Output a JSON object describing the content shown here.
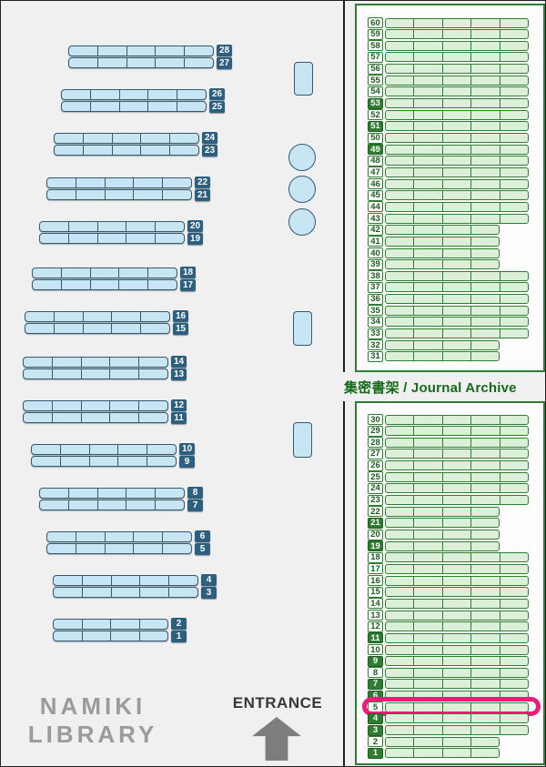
{
  "library_name_line1": "NAMIKI",
  "library_name_line2": "LIBRARY",
  "entrance_label": "ENTRANCE",
  "archive_label": "集密書架 / Journal Archive",
  "highlighted_row": 5,
  "colors": {
    "highlight_pink": "#ec1a78",
    "shelf_blue_fill": "#c8e5f4",
    "shelf_blue_border": "#35596d",
    "shelf_blue_label_bg": "#2d5f80",
    "shelf_green_fill": "#dcefd8",
    "shelf_green_border": "#2f7d32",
    "archive_text_green": "#156a1a",
    "background_gray": "#f0f0f0"
  },
  "left_shelves": {
    "rows": [
      {
        "n": 28,
        "cells": 5
      },
      {
        "n": 27,
        "cells": 5
      },
      {
        "n": 26,
        "cells": 5
      },
      {
        "n": 25,
        "cells": 5
      },
      {
        "n": 24,
        "cells": 5
      },
      {
        "n": 23,
        "cells": 5
      },
      {
        "n": 22,
        "cells": 5
      },
      {
        "n": 21,
        "cells": 5
      },
      {
        "n": 20,
        "cells": 5
      },
      {
        "n": 19,
        "cells": 5
      },
      {
        "n": 18,
        "cells": 5
      },
      {
        "n": 17,
        "cells": 5
      },
      {
        "n": 16,
        "cells": 5
      },
      {
        "n": 15,
        "cells": 5
      },
      {
        "n": 14,
        "cells": 5
      },
      {
        "n": 13,
        "cells": 5
      },
      {
        "n": 12,
        "cells": 5
      },
      {
        "n": 11,
        "cells": 5
      },
      {
        "n": 10,
        "cells": 5
      },
      {
        "n": 9,
        "cells": 5
      },
      {
        "n": 8,
        "cells": 5
      },
      {
        "n": 7,
        "cells": 5
      },
      {
        "n": 6,
        "cells": 5
      },
      {
        "n": 5,
        "cells": 5
      },
      {
        "n": 4,
        "cells": 5
      },
      {
        "n": 3,
        "cells": 5
      },
      {
        "n": 2,
        "cells": 4
      },
      {
        "n": 1,
        "cells": 4
      }
    ]
  },
  "journal_archive_top": {
    "rows": [
      {
        "n": 60,
        "cells": 5,
        "dark": false
      },
      {
        "n": 59,
        "cells": 5,
        "dark": false
      },
      {
        "n": 58,
        "cells": 5,
        "dark": false
      },
      {
        "n": 57,
        "cells": 5,
        "dark": false
      },
      {
        "n": 56,
        "cells": 5,
        "dark": false
      },
      {
        "n": 55,
        "cells": 5,
        "dark": false
      },
      {
        "n": 54,
        "cells": 5,
        "dark": false
      },
      {
        "n": 53,
        "cells": 5,
        "dark": true
      },
      {
        "n": 52,
        "cells": 5,
        "dark": false
      },
      {
        "n": 51,
        "cells": 5,
        "dark": true
      },
      {
        "n": 50,
        "cells": 5,
        "dark": false
      },
      {
        "n": 49,
        "cells": 5,
        "dark": true
      },
      {
        "n": 48,
        "cells": 5,
        "dark": false
      },
      {
        "n": 47,
        "cells": 5,
        "dark": false
      },
      {
        "n": 46,
        "cells": 5,
        "dark": false
      },
      {
        "n": 45,
        "cells": 5,
        "dark": false
      },
      {
        "n": 44,
        "cells": 5,
        "dark": false
      },
      {
        "n": 43,
        "cells": 5,
        "dark": false
      },
      {
        "n": 42,
        "cells": 4,
        "dark": false
      },
      {
        "n": 41,
        "cells": 4,
        "dark": false
      },
      {
        "n": 40,
        "cells": 4,
        "dark": false
      },
      {
        "n": 39,
        "cells": 4,
        "dark": false
      },
      {
        "n": 38,
        "cells": 5,
        "dark": false
      },
      {
        "n": 37,
        "cells": 5,
        "dark": false
      },
      {
        "n": 36,
        "cells": 5,
        "dark": false
      },
      {
        "n": 35,
        "cells": 5,
        "dark": false
      },
      {
        "n": 34,
        "cells": 5,
        "dark": false
      },
      {
        "n": 33,
        "cells": 5,
        "dark": false
      },
      {
        "n": 32,
        "cells": 4,
        "dark": false
      },
      {
        "n": 31,
        "cells": 4,
        "dark": false
      }
    ]
  },
  "journal_archive_bottom": {
    "rows": [
      {
        "n": 30,
        "cells": 5,
        "dark": false
      },
      {
        "n": 29,
        "cells": 5,
        "dark": false
      },
      {
        "n": 28,
        "cells": 5,
        "dark": false
      },
      {
        "n": 27,
        "cells": 5,
        "dark": false
      },
      {
        "n": 26,
        "cells": 5,
        "dark": false
      },
      {
        "n": 25,
        "cells": 5,
        "dark": false
      },
      {
        "n": 24,
        "cells": 5,
        "dark": false
      },
      {
        "n": 23,
        "cells": 5,
        "dark": false
      },
      {
        "n": 22,
        "cells": 4,
        "dark": false
      },
      {
        "n": 21,
        "cells": 4,
        "dark": true
      },
      {
        "n": 20,
        "cells": 4,
        "dark": false
      },
      {
        "n": 19,
        "cells": 4,
        "dark": true
      },
      {
        "n": 18,
        "cells": 5,
        "dark": false
      },
      {
        "n": 17,
        "cells": 5,
        "dark": false
      },
      {
        "n": 16,
        "cells": 5,
        "dark": false
      },
      {
        "n": 15,
        "cells": 5,
        "dark": false
      },
      {
        "n": 14,
        "cells": 5,
        "dark": false
      },
      {
        "n": 13,
        "cells": 5,
        "dark": false
      },
      {
        "n": 12,
        "cells": 5,
        "dark": false
      },
      {
        "n": 11,
        "cells": 5,
        "dark": true
      },
      {
        "n": 10,
        "cells": 5,
        "dark": false
      },
      {
        "n": 9,
        "cells": 5,
        "dark": true
      },
      {
        "n": 8,
        "cells": 5,
        "dark": false
      },
      {
        "n": 7,
        "cells": 5,
        "dark": true
      },
      {
        "n": 6,
        "cells": 5,
        "dark": true
      },
      {
        "n": 5,
        "cells": 5,
        "dark": false,
        "highlighted": true
      },
      {
        "n": 4,
        "cells": 5,
        "dark": true
      },
      {
        "n": 3,
        "cells": 5,
        "dark": true
      },
      {
        "n": 2,
        "cells": 4,
        "dark": false
      },
      {
        "n": 1,
        "cells": 4,
        "dark": true
      }
    ]
  }
}
